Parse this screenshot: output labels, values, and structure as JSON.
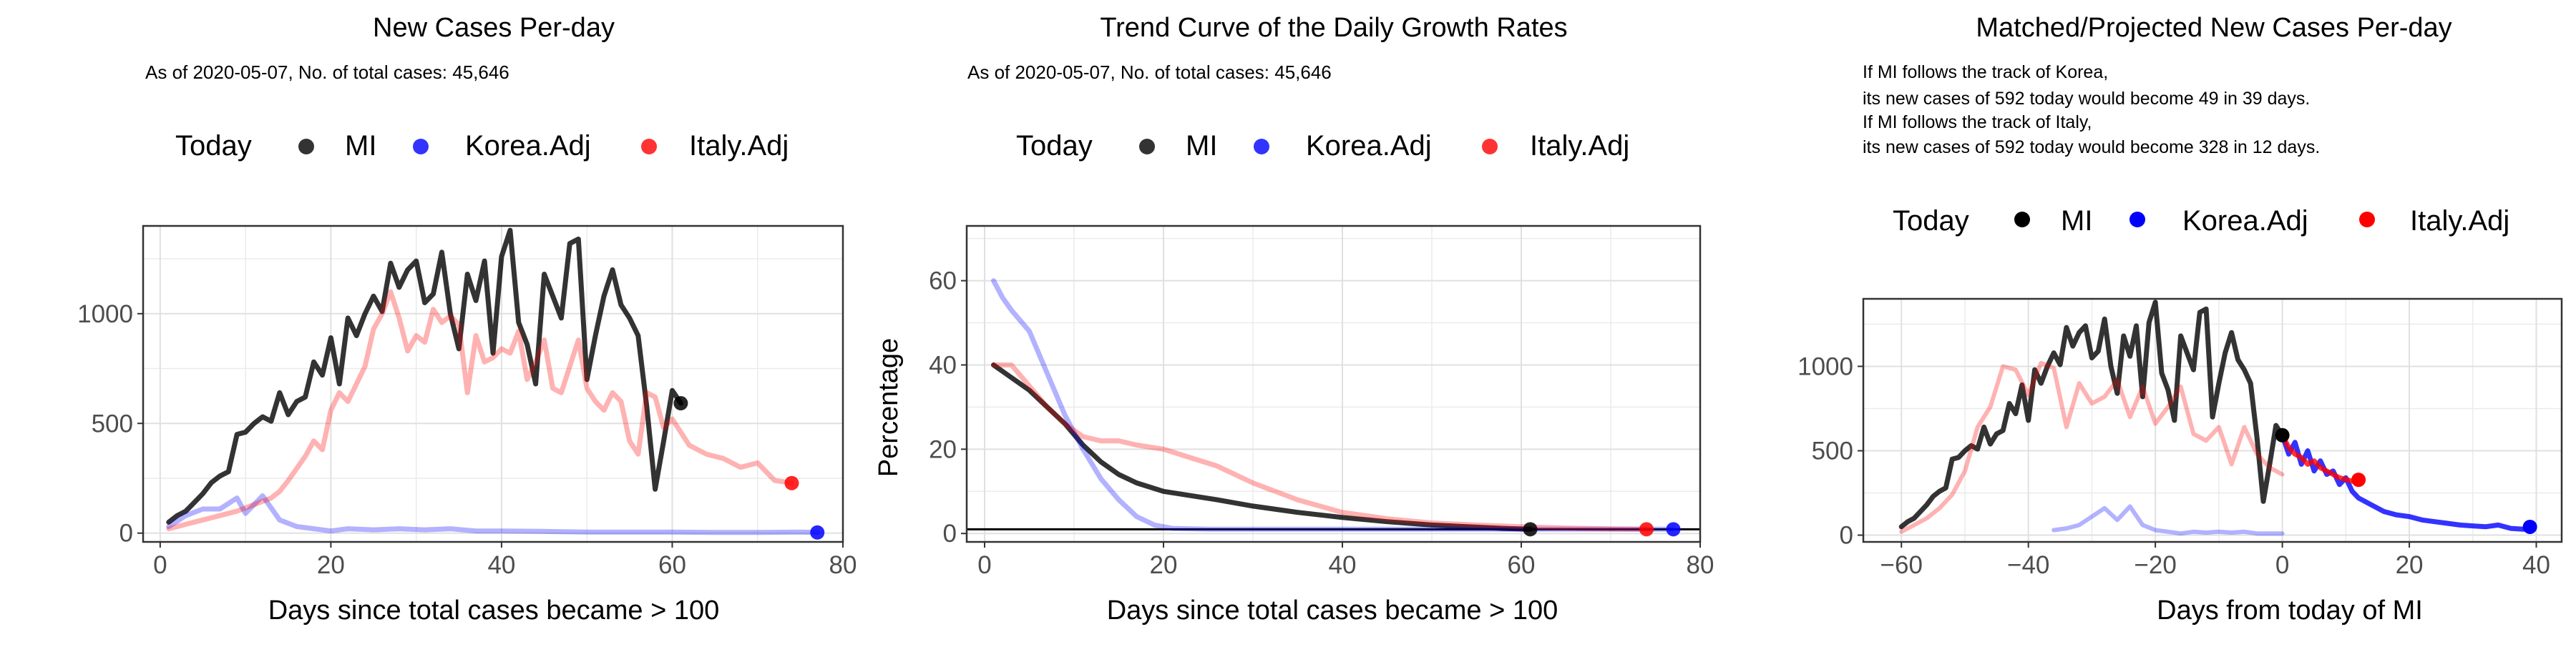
{
  "legend": {
    "title": "Today",
    "items": [
      {
        "label": "MI",
        "color": "#000000"
      },
      {
        "label": "Korea.Adj",
        "color": "#0000ff"
      },
      {
        "label": "Italy.Adj",
        "color": "#ff0000"
      }
    ]
  },
  "panels": [
    {
      "title": "New Cases Per-day",
      "subtitle": "As of 2020-05-07, No. of total cases: 45,646"
    },
    {
      "title": "Trend Curve of the Daily Growth Rates",
      "subtitle": "As of 2020-05-07, No. of total cases: 45,646"
    },
    {
      "title": "Matched/Projected New Cases Per-day",
      "annotation": [
        "If MI follows the track of Korea,",
        "its new cases of 592 today would become 49 in 39 days.",
        "If MI follows the track of Italy,",
        "its new cases of 592 today would become 328 in 12 days."
      ]
    }
  ],
  "chart_data": [
    {
      "type": "line",
      "title": "New Cases Per-day",
      "subtitle": "As of 2020-05-07, No. of total cases: 45,646",
      "xlabel": "Days since total cases became > 100",
      "ylabel": "",
      "xlim": [
        -2,
        80
      ],
      "ylim": [
        -40,
        1400
      ],
      "xticks": [
        0,
        20,
        40,
        60,
        80
      ],
      "yticks": [
        0,
        500,
        1000
      ],
      "grid": true,
      "legend_position": "top",
      "series": [
        {
          "name": "MI",
          "color": "#000000",
          "x": [
            1,
            2,
            3,
            4,
            5,
            6,
            7,
            8,
            9,
            10,
            11,
            12,
            13,
            14,
            15,
            16,
            17,
            18,
            19,
            20,
            21,
            22,
            23,
            24,
            25,
            26,
            27,
            28,
            29,
            30,
            31,
            32,
            33,
            34,
            35,
            36,
            37,
            38,
            39,
            40,
            41,
            42,
            43,
            44,
            45,
            46,
            47,
            48,
            49,
            50,
            51,
            52,
            53,
            54,
            55,
            56,
            57,
            58,
            59,
            60,
            61
          ],
          "y": [
            50,
            80,
            100,
            140,
            180,
            230,
            260,
            280,
            450,
            460,
            500,
            530,
            510,
            640,
            540,
            600,
            620,
            780,
            720,
            890,
            680,
            980,
            900,
            1000,
            1080,
            1010,
            1230,
            1120,
            1200,
            1240,
            1050,
            1090,
            1280,
            1000,
            840,
            1180,
            1060,
            1240,
            820,
            1260,
            1380,
            960,
            860,
            680,
            1180,
            1080,
            980,
            1320,
            1340,
            700,
            900,
            1080,
            1200,
            1040,
            980,
            900,
            580,
            200,
            420,
            650,
            592
          ]
        },
        {
          "name": "Korea.Adj",
          "color": "#0000ff",
          "x": [
            1,
            3,
            5,
            7,
            9,
            10,
            12,
            14,
            16,
            18,
            20,
            22,
            25,
            28,
            31,
            34,
            37,
            40,
            45,
            50,
            55,
            60,
            65,
            70,
            75,
            77
          ],
          "y": [
            30,
            80,
            110,
            110,
            160,
            90,
            170,
            60,
            30,
            20,
            10,
            20,
            15,
            20,
            15,
            20,
            10,
            10,
            8,
            5,
            5,
            5,
            3,
            3,
            5,
            3
          ]
        },
        {
          "name": "Italy.Adj",
          "color": "#ff0000",
          "x": [
            1,
            3,
            5,
            7,
            9,
            11,
            13,
            14,
            15,
            17,
            18,
            19,
            20,
            21,
            22,
            23,
            24,
            25,
            26,
            27,
            28,
            29,
            30,
            31,
            32,
            33,
            34,
            35,
            36,
            37,
            38,
            39,
            40,
            41,
            42,
            43,
            44,
            45,
            46,
            47,
            48,
            49,
            50,
            51,
            52,
            53,
            54,
            55,
            56,
            57,
            58,
            59,
            60,
            62,
            64,
            66,
            68,
            70,
            72,
            74
          ],
          "y": [
            20,
            40,
            60,
            80,
            100,
            130,
            160,
            190,
            240,
            350,
            420,
            380,
            560,
            640,
            600,
            680,
            760,
            930,
            1000,
            1100,
            980,
            830,
            900,
            870,
            1020,
            960,
            990,
            950,
            640,
            900,
            780,
            800,
            840,
            820,
            920,
            700,
            780,
            880,
            660,
            640,
            760,
            880,
            660,
            600,
            560,
            640,
            600,
            420,
            360,
            640,
            620,
            480,
            520,
            400,
            360,
            340,
            300,
            320,
            240,
            228
          ]
        }
      ],
      "today_points": [
        {
          "series": "MI",
          "x": 61,
          "y": 592
        },
        {
          "series": "Korea.Adj",
          "x": 77,
          "y": 3
        },
        {
          "series": "Italy.Adj",
          "x": 74,
          "y": 228
        }
      ]
    },
    {
      "type": "line",
      "title": "Trend Curve of the Daily Growth Rates",
      "subtitle": "As of 2020-05-07, No. of total cases: 45,646",
      "xlabel": "Days since total cases became > 100",
      "ylabel": "Percentage",
      "xlim": [
        -2,
        80
      ],
      "ylim": [
        -2,
        73
      ],
      "xticks": [
        0,
        20,
        40,
        60,
        80
      ],
      "yticks": [
        0,
        20,
        40,
        60
      ],
      "grid": true,
      "hline": 1,
      "legend_position": "top",
      "series": [
        {
          "name": "MI",
          "color": "#000000",
          "x": [
            1,
            3,
            5,
            7,
            9,
            11,
            13,
            15,
            17,
            20,
            23,
            26,
            30,
            35,
            40,
            45,
            50,
            55,
            58,
            61
          ],
          "y": [
            40,
            37,
            34,
            30,
            26,
            21,
            17,
            14,
            12,
            10,
            9,
            8,
            6.5,
            5,
            3.8,
            2.8,
            2,
            1.5,
            1.2,
            1
          ]
        },
        {
          "name": "Korea.Adj",
          "color": "#0000ff",
          "x": [
            1,
            2,
            3,
            5,
            7,
            9,
            11,
            13,
            15,
            17,
            19,
            21,
            25,
            30,
            40,
            50,
            60,
            70,
            77
          ],
          "y": [
            60,
            56,
            53,
            48,
            38,
            28,
            20,
            13,
            8,
            4,
            2,
            1.2,
            1,
            1,
            1,
            1,
            1,
            1,
            1
          ]
        },
        {
          "name": "Italy.Adj",
          "color": "#ff0000",
          "x": [
            1,
            3,
            5,
            7,
            9,
            11,
            13,
            15,
            17,
            20,
            23,
            26,
            30,
            35,
            40,
            45,
            50,
            55,
            60,
            65,
            70,
            74
          ],
          "y": [
            40,
            40,
            35,
            30,
            26,
            23,
            22,
            22,
            21,
            20,
            18,
            16,
            12,
            8,
            5,
            3.5,
            2.5,
            2,
            1.6,
            1.3,
            1.1,
            1
          ]
        }
      ],
      "today_points": [
        {
          "series": "MI",
          "x": 61,
          "y": 1
        },
        {
          "series": "Korea.Adj",
          "x": 77,
          "y": 1
        },
        {
          "series": "Italy.Adj",
          "x": 74,
          "y": 1
        }
      ]
    },
    {
      "type": "line",
      "title": "Matched/Projected New Cases Per-day",
      "xlabel": "Days from today of MI",
      "ylabel": "",
      "xlim": [
        -66,
        44
      ],
      "ylim": [
        -40,
        1400
      ],
      "xticks": [
        -60,
        -40,
        -20,
        0,
        20,
        40
      ],
      "yticks": [
        0,
        500,
        1000
      ],
      "grid": true,
      "legend_position": "top",
      "series": [
        {
          "name": "MI",
          "color": "#000000",
          "x": [
            -60,
            -59,
            -58,
            -57,
            -56,
            -55,
            -54,
            -53,
            -52,
            -51,
            -50,
            -49,
            -48,
            -47,
            -46,
            -45,
            -44,
            -43,
            -42,
            -41,
            -40,
            -39,
            -38,
            -37,
            -36,
            -35,
            -34,
            -33,
            -32,
            -31,
            -30,
            -29,
            -28,
            -27,
            -26,
            -25,
            -24,
            -23,
            -22,
            -21,
            -20,
            -19,
            -18,
            -17,
            -16,
            -15,
            -14,
            -13,
            -12,
            -11,
            -10,
            -9,
            -8,
            -7,
            -6,
            -5,
            -4,
            -3,
            -2,
            -1,
            0
          ],
          "y": [
            50,
            80,
            100,
            140,
            180,
            230,
            260,
            280,
            450,
            460,
            500,
            530,
            510,
            640,
            540,
            600,
            620,
            780,
            720,
            890,
            680,
            980,
            900,
            1000,
            1080,
            1010,
            1230,
            1120,
            1200,
            1240,
            1050,
            1090,
            1280,
            1000,
            840,
            1180,
            1060,
            1240,
            820,
            1260,
            1380,
            960,
            860,
            680,
            1180,
            1080,
            980,
            1320,
            1340,
            700,
            900,
            1080,
            1200,
            1040,
            980,
            900,
            580,
            200,
            420,
            650,
            592
          ]
        },
        {
          "name": "Korea.Adj (history)",
          "color": "#0000ff",
          "x": [
            -36,
            -34,
            -32,
            -30,
            -28,
            -26,
            -24,
            -22,
            -20,
            -18,
            -16,
            -14,
            -12,
            -10,
            -8,
            -6,
            -4,
            -2,
            0
          ],
          "y": [
            30,
            40,
            60,
            110,
            160,
            90,
            170,
            60,
            30,
            20,
            10,
            20,
            15,
            20,
            15,
            20,
            10,
            10,
            10
          ]
        },
        {
          "name": "Korea.Adj (projection)",
          "color": "#0000ff",
          "x": [
            0,
            1,
            2,
            3,
            4,
            5,
            6,
            7,
            8,
            9,
            10,
            11,
            12,
            14,
            16,
            18,
            20,
            22,
            24,
            26,
            28,
            30,
            32,
            34,
            36,
            38,
            39
          ],
          "y": [
            592,
            480,
            550,
            420,
            500,
            380,
            440,
            360,
            380,
            300,
            340,
            260,
            220,
            180,
            140,
            120,
            110,
            90,
            80,
            70,
            60,
            55,
            50,
            60,
            40,
            35,
            49
          ]
        },
        {
          "name": "Italy.Adj (history)",
          "color": "#ff0000",
          "x": [
            -60,
            -58,
            -56,
            -54,
            -52,
            -50,
            -48,
            -46,
            -44,
            -42,
            -40,
            -38,
            -36,
            -34,
            -32,
            -30,
            -28,
            -26,
            -24,
            -22,
            -20,
            -18,
            -16,
            -14,
            -12,
            -10,
            -8,
            -6,
            -4,
            -2,
            0
          ],
          "y": [
            20,
            60,
            100,
            160,
            240,
            380,
            640,
            760,
            1000,
            980,
            830,
            1020,
            990,
            640,
            900,
            780,
            820,
            920,
            700,
            880,
            660,
            760,
            880,
            600,
            560,
            640,
            420,
            640,
            480,
            400,
            360
          ]
        },
        {
          "name": "Italy.Adj (projection)",
          "color": "#ff0000",
          "x": [
            0,
            1,
            2,
            3,
            4,
            5,
            6,
            7,
            8,
            9,
            10,
            11,
            12
          ],
          "y": [
            592,
            520,
            480,
            460,
            420,
            440,
            400,
            380,
            360,
            340,
            330,
            320,
            328
          ]
        }
      ],
      "today_points": [
        {
          "series": "MI",
          "x": 0,
          "y": 592
        },
        {
          "series": "Korea.Adj",
          "x": 39,
          "y": 49
        },
        {
          "series": "Italy.Adj",
          "x": 12,
          "y": 328
        }
      ]
    }
  ]
}
